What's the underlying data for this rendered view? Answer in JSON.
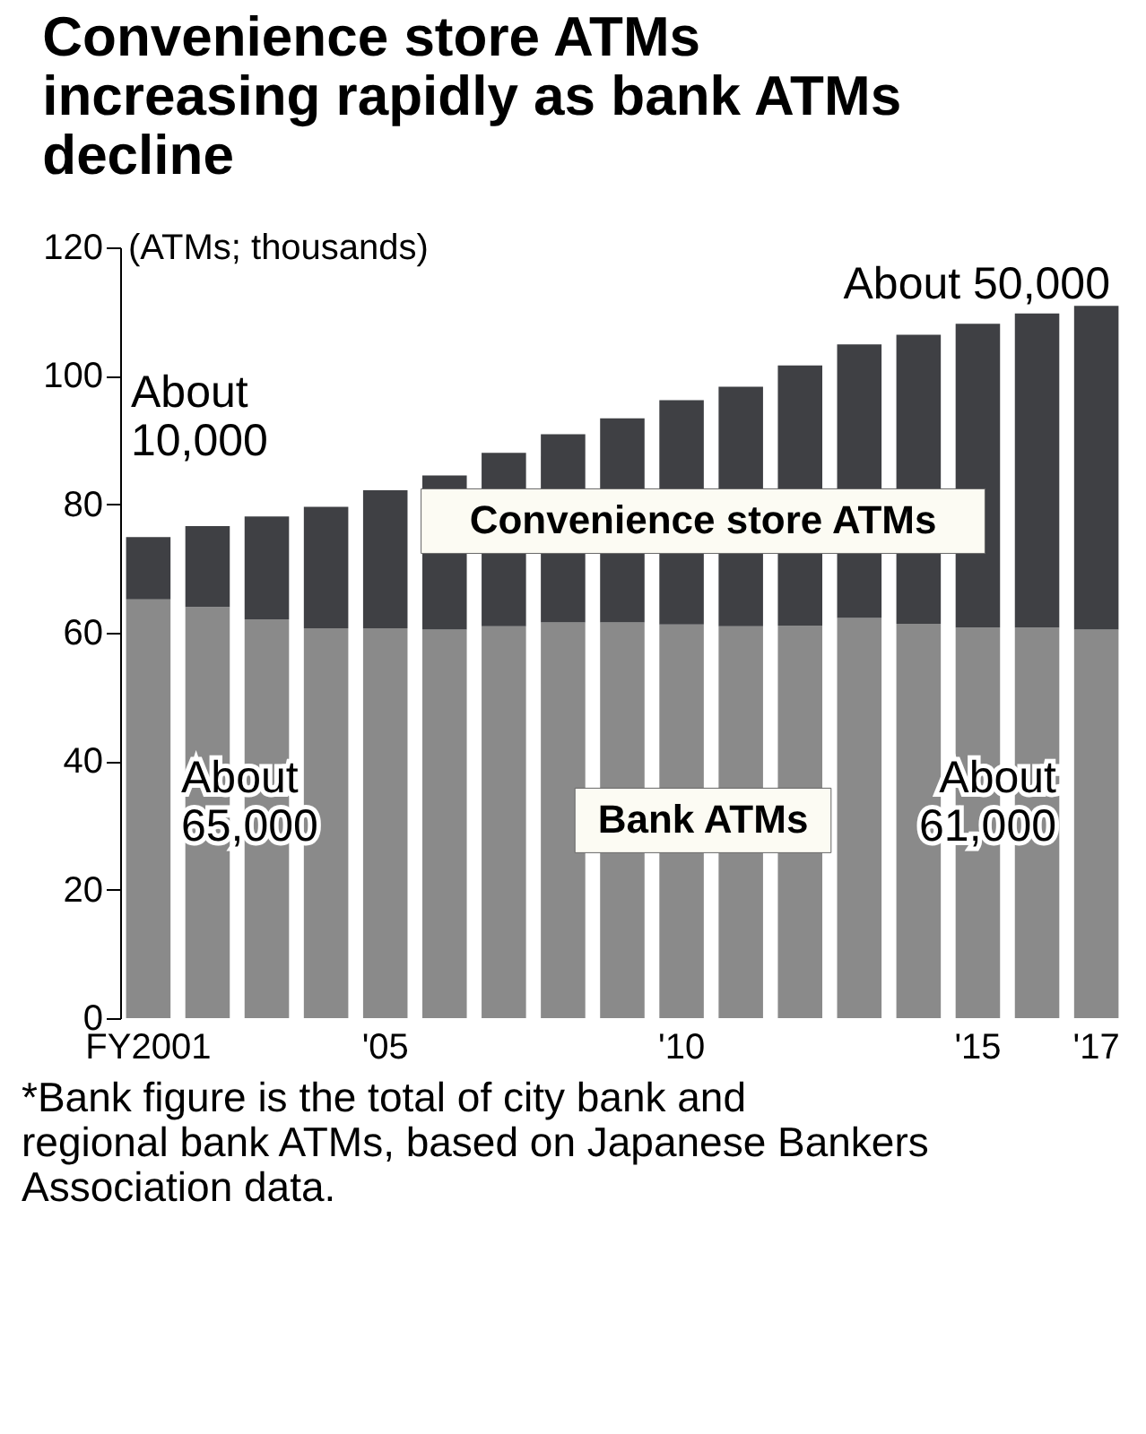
{
  "chart_data": {
    "type": "bar",
    "stacked": true,
    "title": "Convenience store ATMs increasing rapidly as bank ATMs decline",
    "ylabel": "(ATMs; thousands)",
    "categories": [
      "FY2001",
      null,
      null,
      null,
      "'05",
      null,
      null,
      null,
      null,
      "'10",
      null,
      null,
      null,
      null,
      "'15",
      null,
      "'17"
    ],
    "series": [
      {
        "name": "Bank ATMs",
        "color": "#8a8a8a",
        "values": [
          65.2,
          64.0,
          62.1,
          60.7,
          60.7,
          60.5,
          61.0,
          61.6,
          61.6,
          61.3,
          61.0,
          61.1,
          62.3,
          61.4,
          60.8,
          60.8,
          60.5
        ]
      },
      {
        "name": "Convenience store ATMs",
        "color": "#3f4044",
        "values": [
          9.7,
          12.6,
          16.0,
          18.9,
          21.5,
          24.0,
          27.0,
          29.3,
          31.8,
          34.9,
          37.3,
          40.5,
          42.6,
          45.0,
          47.3,
          48.9,
          50.4
        ]
      }
    ],
    "ylim": [
      0,
      120
    ],
    "yticks": [
      0,
      20,
      40,
      60,
      80,
      100,
      120
    ],
    "grid": false,
    "legend": false,
    "annotations": [
      "About\n10,000",
      "About\n65,000",
      "About 50,000",
      "About\n61,000",
      "*Bank figure is the total of city bank and regional bank ATMs, based on Japanese Bankers Association data."
    ]
  }
}
